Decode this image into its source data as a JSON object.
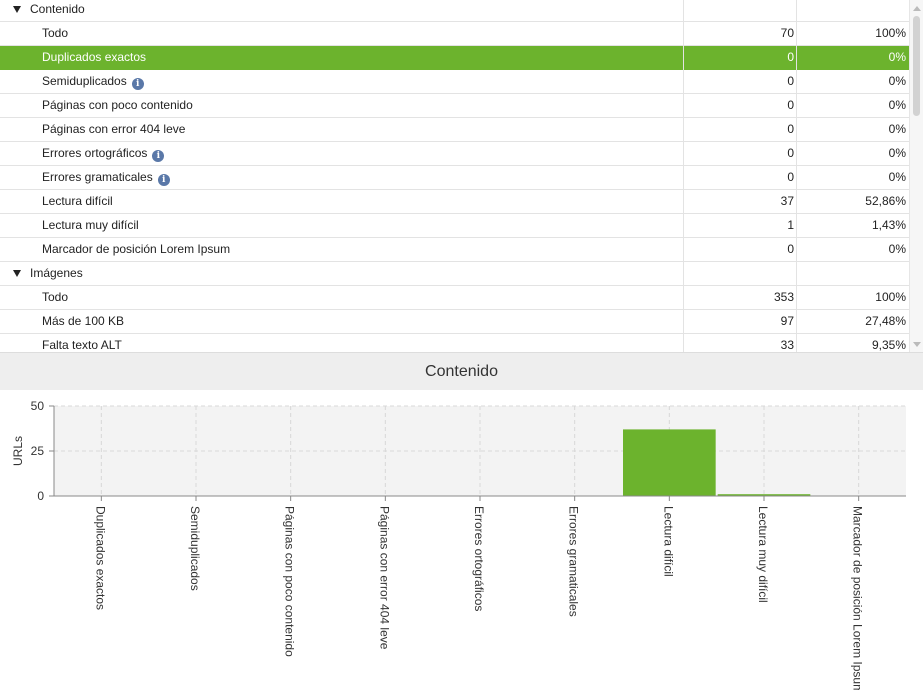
{
  "table": {
    "rows": [
      {
        "kind": "section",
        "name": "Contenido",
        "count": "",
        "pct": ""
      },
      {
        "kind": "item",
        "name": "Todo",
        "count": "70",
        "pct": "100%"
      },
      {
        "kind": "item",
        "name": "Duplicados exactos",
        "count": "0",
        "pct": "0%",
        "selected": true
      },
      {
        "kind": "item",
        "name": "Semiduplicados",
        "count": "0",
        "pct": "0%",
        "info": true
      },
      {
        "kind": "item",
        "name": "Páginas con poco contenido",
        "count": "0",
        "pct": "0%"
      },
      {
        "kind": "item",
        "name": "Páginas con error 404 leve",
        "count": "0",
        "pct": "0%"
      },
      {
        "kind": "item",
        "name": "Errores ortográficos",
        "count": "0",
        "pct": "0%",
        "info": true
      },
      {
        "kind": "item",
        "name": "Errores gramaticales",
        "count": "0",
        "pct": "0%",
        "info": true
      },
      {
        "kind": "item",
        "name": "Lectura difícil",
        "count": "37",
        "pct": "52,86%"
      },
      {
        "kind": "item",
        "name": "Lectura muy difícil",
        "count": "1",
        "pct": "1,43%"
      },
      {
        "kind": "item",
        "name": "Marcador de posición Lorem Ipsum",
        "count": "0",
        "pct": "0%"
      },
      {
        "kind": "section",
        "name": "Imágenes",
        "count": "",
        "pct": ""
      },
      {
        "kind": "item",
        "name": "Todo",
        "count": "353",
        "pct": "100%"
      },
      {
        "kind": "item",
        "name": "Más de 100 KB",
        "count": "97",
        "pct": "27,48%"
      },
      {
        "kind": "item",
        "name": "Falta texto ALT",
        "count": "33",
        "pct": "9,35%"
      }
    ],
    "info_glyph": "i",
    "selected_color": "#6cb32d"
  },
  "chart": {
    "title": "Contenido"
  },
  "chart_data": {
    "type": "bar",
    "title": "Contenido",
    "xlabel": "",
    "ylabel": "URLs",
    "categories": [
      "Duplicados exactos",
      "Semiduplicados",
      "Páginas con poco contenido",
      "Páginas con error 404 leve",
      "Errores ortográficos",
      "Errores gramaticales",
      "Lectura difícil",
      "Lectura muy difícil",
      "Marcador de posición Lorem Ipsum"
    ],
    "values": [
      0,
      0,
      0,
      0,
      0,
      0,
      37,
      1,
      0
    ],
    "ylim": [
      0,
      50
    ],
    "yticks": [
      0,
      25,
      50
    ],
    "grid": true,
    "bar_color": "#6cb32d"
  }
}
